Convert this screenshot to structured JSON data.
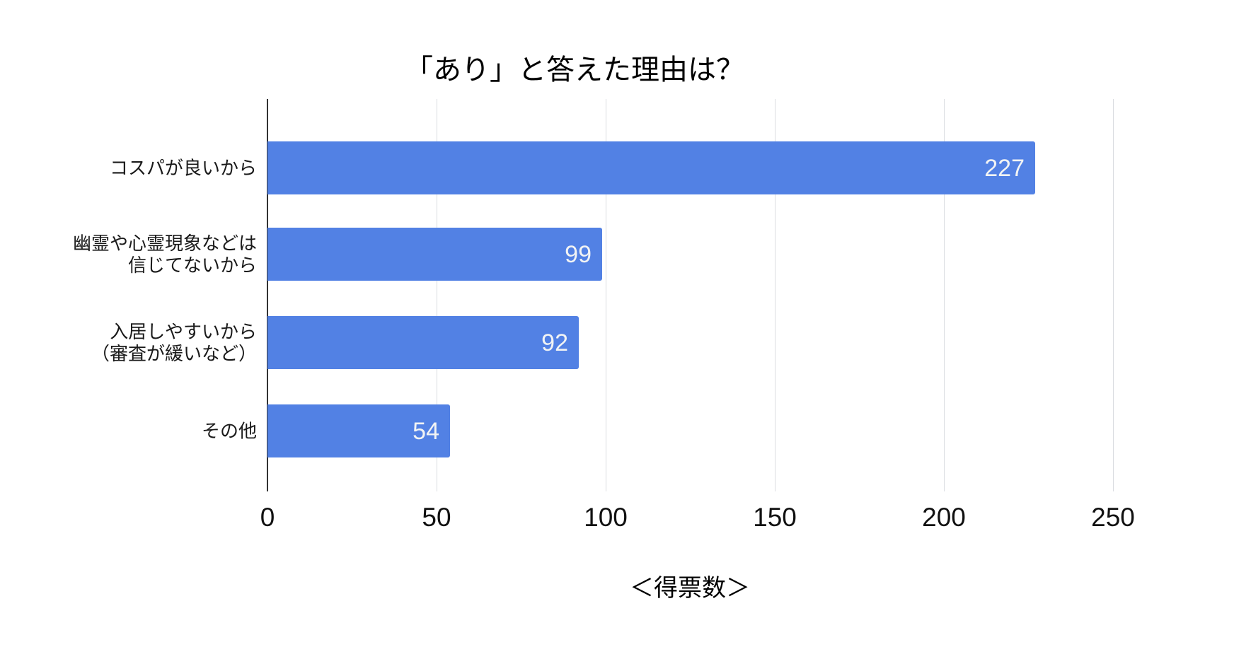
{
  "chart_data": {
    "type": "bar",
    "orientation": "horizontal",
    "title": "「あり」と答えた理由は？",
    "xlabel": "＜得票数＞",
    "categories": [
      [
        "コスパが良いから"
      ],
      [
        "幽霊や心霊現象などは",
        "信じてないから"
      ],
      [
        "入居しやすいから",
        "（審査が緩いなど）"
      ],
      [
        "その他"
      ]
    ],
    "values": [
      227,
      99,
      92,
      54
    ],
    "x_ticks": [
      0,
      50,
      100,
      150,
      200,
      250
    ],
    "xlim": [
      0,
      250
    ],
    "grid": true,
    "legend": "none",
    "colors": {
      "bar": "#5281e4",
      "value_label": "#f1f3f4",
      "gridline": "#dadce0",
      "axis_line": "#333333",
      "tick_text": "#111111",
      "title_text": "#000000"
    }
  }
}
